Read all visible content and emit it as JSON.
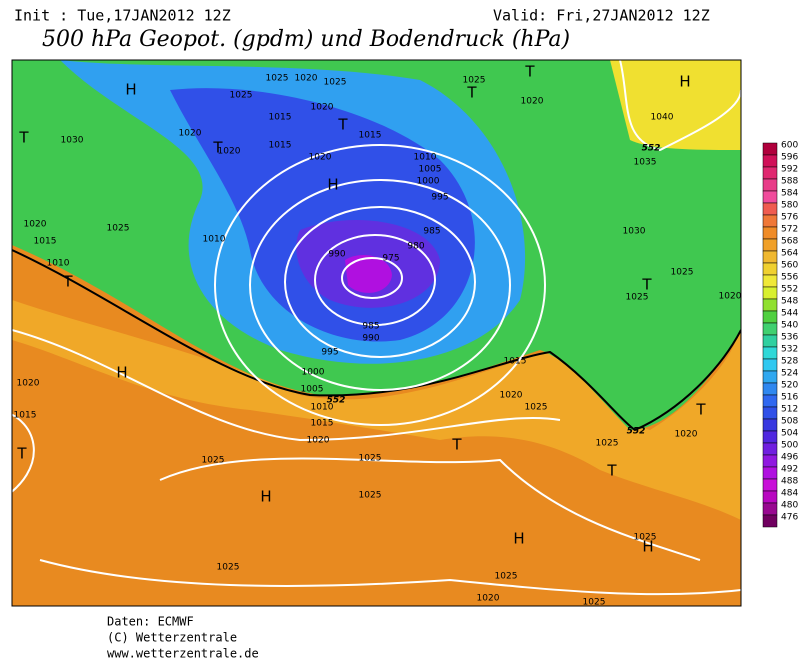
{
  "header": {
    "init": "Init : Tue,17JAN2012 12Z",
    "valid": "Valid: Fri,27JAN2012 12Z",
    "title": "500 hPa Geopot. (gpdm) und Bodendruck (hPa)"
  },
  "colorbar": {
    "labels": [
      600,
      596,
      592,
      588,
      584,
      580,
      576,
      572,
      568,
      564,
      560,
      556,
      552,
      548,
      544,
      540,
      536,
      532,
      528,
      524,
      520,
      516,
      512,
      508,
      504,
      500,
      496,
      492,
      488,
      484,
      480,
      476
    ],
    "colors": [
      "#b0003c",
      "#d01058",
      "#e02870",
      "#e83c88",
      "#f04c9c",
      "#f05c50",
      "#f07838",
      "#f08c28",
      "#f0a028",
      "#f0b830",
      "#f0d030",
      "#f0e838",
      "#d8f030",
      "#90e030",
      "#50d040",
      "#40d070",
      "#30d0a0",
      "#30d8d8",
      "#30c8f0",
      "#30a8f0",
      "#3088f0",
      "#3068f0",
      "#3050e8",
      "#3838e0",
      "#5028e0",
      "#7020e0",
      "#9018e0",
      "#b010e0",
      "#c810d8",
      "#b808c0",
      "#980890",
      "#700060"
    ]
  },
  "map": {
    "pressure_labels": [
      1025,
      1020,
      1025,
      1025,
      1020,
      1015,
      1015,
      1020,
      1020,
      1015,
      1020,
      1030,
      1025,
      1020,
      1040,
      1035,
      1010,
      1005,
      1000,
      995,
      985,
      980,
      975,
      990,
      1010,
      1020,
      1025,
      1015,
      1010,
      1030,
      1025,
      1025,
      1020,
      985,
      990,
      995,
      1000,
      1005,
      1010,
      1015,
      1020,
      1015,
      1020,
      1025,
      1020,
      1015,
      1025,
      1025,
      1025,
      1025,
      1020,
      1025,
      1025,
      1025,
      1020,
      1025
    ],
    "centers": [
      "H",
      "T",
      "T",
      "T",
      "H",
      "T",
      "T",
      "H",
      "T",
      "H",
      "T",
      "H",
      "T",
      "T",
      "H",
      "H",
      "T",
      "T"
    ],
    "height_labels": [
      552,
      552,
      552
    ]
  },
  "footer": {
    "lines": [
      "Daten: ECMWF",
      "(C) Wetterzentrale",
      "www.wetterzentrale.de"
    ]
  }
}
